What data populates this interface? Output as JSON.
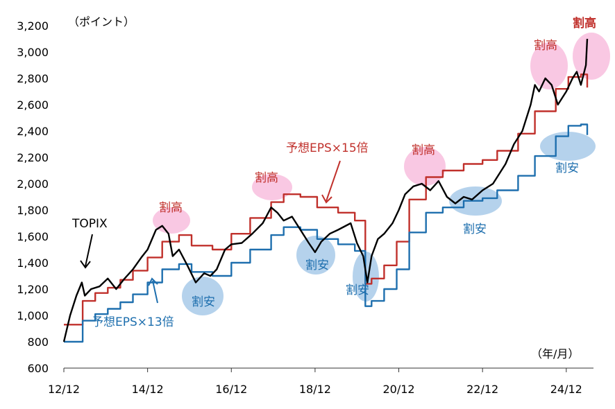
{
  "chart_data": {
    "type": "line",
    "ylim": [
      600,
      3200
    ],
    "yticks": [
      "600",
      "800",
      "1,000",
      "1,200",
      "1,400",
      "1,600",
      "1,800",
      "2,000",
      "2,200",
      "2,400",
      "2,600",
      "2,800",
      "3,000",
      "3,200"
    ],
    "ytick_values": [
      600,
      800,
      1000,
      1200,
      1400,
      1600,
      1800,
      2000,
      2200,
      2400,
      2600,
      2800,
      3000,
      3200
    ],
    "xlim": [
      2012.95,
      2025.6
    ],
    "xticks": [
      "12/12",
      "14/12",
      "16/12",
      "18/12",
      "20/12",
      "22/12",
      "24/12"
    ],
    "xtick_values": [
      2012.95,
      2014.95,
      2016.95,
      2018.95,
      2020.95,
      2022.95,
      2024.95
    ],
    "y_unit_label": "（ポイント）",
    "x_unit_label": "（年/月）",
    "grid": false,
    "series": [
      {
        "name": "TOPIX",
        "color": "#000000",
        "x": [
          2012.95,
          2013.1,
          2013.25,
          2013.38,
          2013.45,
          2013.6,
          2013.8,
          2014.0,
          2014.2,
          2014.4,
          2014.6,
          2014.8,
          2014.95,
          2015.15,
          2015.3,
          2015.45,
          2015.55,
          2015.7,
          2015.9,
          2016.1,
          2016.3,
          2016.45,
          2016.6,
          2016.8,
          2016.95,
          2017.2,
          2017.45,
          2017.7,
          2017.9,
          2018.05,
          2018.2,
          2018.4,
          2018.6,
          2018.8,
          2018.95,
          2019.1,
          2019.3,
          2019.5,
          2019.8,
          2019.95,
          2020.1,
          2020.2,
          2020.3,
          2020.45,
          2020.6,
          2020.8,
          2020.95,
          2021.1,
          2021.3,
          2021.5,
          2021.7,
          2021.9,
          2022.1,
          2022.3,
          2022.5,
          2022.7,
          2022.95,
          2023.2,
          2023.5,
          2023.7,
          2023.9,
          2024.1,
          2024.2,
          2024.3,
          2024.45,
          2024.6,
          2024.75,
          2024.95,
          2025.1,
          2025.2,
          2025.3,
          2025.42,
          2025.45
        ],
        "values": [
          800,
          1000,
          1150,
          1250,
          1150,
          1200,
          1220,
          1280,
          1200,
          1280,
          1350,
          1440,
          1500,
          1650,
          1680,
          1620,
          1450,
          1500,
          1380,
          1250,
          1320,
          1300,
          1350,
          1500,
          1540,
          1550,
          1620,
          1700,
          1820,
          1780,
          1720,
          1750,
          1650,
          1550,
          1480,
          1560,
          1620,
          1650,
          1700,
          1550,
          1450,
          1250,
          1450,
          1580,
          1620,
          1700,
          1800,
          1920,
          1980,
          2000,
          1950,
          2020,
          1900,
          1850,
          1900,
          1880,
          1950,
          2000,
          2150,
          2300,
          2400,
          2600,
          2750,
          2700,
          2800,
          2750,
          2600,
          2700,
          2800,
          2850,
          2750,
          2900,
          3100
        ]
      },
      {
        "name": "予想EPS×15倍",
        "color": "#c0302b",
        "x": [
          2012.95,
          2013.4,
          2013.7,
          2014.0,
          2014.3,
          2014.6,
          2014.95,
          2015.3,
          2015.7,
          2016.0,
          2016.5,
          2016.95,
          2017.4,
          2017.9,
          2018.2,
          2018.6,
          2019.0,
          2019.5,
          2019.9,
          2020.15,
          2020.3,
          2020.6,
          2020.9,
          2021.2,
          2021.6,
          2022.0,
          2022.5,
          2022.95,
          2023.3,
          2023.8,
          2024.2,
          2024.7,
          2025.0,
          2025.3,
          2025.45
        ],
        "values": [
          930,
          1110,
          1170,
          1210,
          1270,
          1340,
          1440,
          1560,
          1610,
          1530,
          1500,
          1620,
          1740,
          1860,
          1920,
          1900,
          1820,
          1780,
          1720,
          1240,
          1280,
          1380,
          1560,
          1880,
          2050,
          2100,
          2150,
          2180,
          2250,
          2380,
          2550,
          2720,
          2810,
          2830,
          2730
        ]
      },
      {
        "name": "予想EPS×13倍",
        "color": "#1e6fae",
        "x": [
          2012.95,
          2013.4,
          2013.7,
          2014.0,
          2014.3,
          2014.6,
          2014.95,
          2015.3,
          2015.7,
          2016.0,
          2016.5,
          2016.95,
          2017.4,
          2017.9,
          2018.2,
          2018.6,
          2019.0,
          2019.5,
          2019.9,
          2020.15,
          2020.3,
          2020.6,
          2020.9,
          2021.2,
          2021.6,
          2022.0,
          2022.5,
          2022.95,
          2023.3,
          2023.8,
          2024.2,
          2024.7,
          2025.0,
          2025.3,
          2025.45
        ],
        "values": [
          800,
          960,
          1010,
          1050,
          1100,
          1160,
          1250,
          1350,
          1390,
          1330,
          1300,
          1400,
          1500,
          1610,
          1670,
          1650,
          1580,
          1540,
          1490,
          1070,
          1110,
          1200,
          1350,
          1630,
          1780,
          1820,
          1870,
          1890,
          1950,
          2060,
          2210,
          2360,
          2440,
          2450,
          2370
        ]
      }
    ],
    "annotations": [
      {
        "text": "TOPIX",
        "color": "#000000",
        "role": "series-label"
      },
      {
        "text": "予想EPS×15倍",
        "color": "#c0302b",
        "role": "series-label"
      },
      {
        "text": "予想EPS×13倍",
        "color": "#1e6fae",
        "role": "series-label"
      },
      {
        "text": "割高",
        "color": "#c0302b",
        "role": "overvalued",
        "bold": false
      },
      {
        "text": "割高",
        "color": "#c0302b",
        "role": "overvalued",
        "bold": false
      },
      {
        "text": "割高",
        "color": "#c0302b",
        "role": "overvalued",
        "bold": false
      },
      {
        "text": "割高",
        "color": "#c0302b",
        "role": "overvalued",
        "bold": false
      },
      {
        "text": "割高",
        "color": "#c0302b",
        "role": "overvalued",
        "bold": true
      },
      {
        "text": "割安",
        "color": "#1e6fae",
        "role": "undervalued"
      },
      {
        "text": "割安",
        "color": "#1e6fae",
        "role": "undervalued"
      },
      {
        "text": "割安",
        "color": "#1e6fae",
        "role": "undervalued"
      },
      {
        "text": "割安",
        "color": "#1e6fae",
        "role": "undervalued"
      },
      {
        "text": "割安",
        "color": "#1e6fae",
        "role": "undervalued"
      }
    ],
    "highlight_colors": {
      "overvalued": "#f7b6d9",
      "undervalued": "#9cc3e6"
    }
  }
}
